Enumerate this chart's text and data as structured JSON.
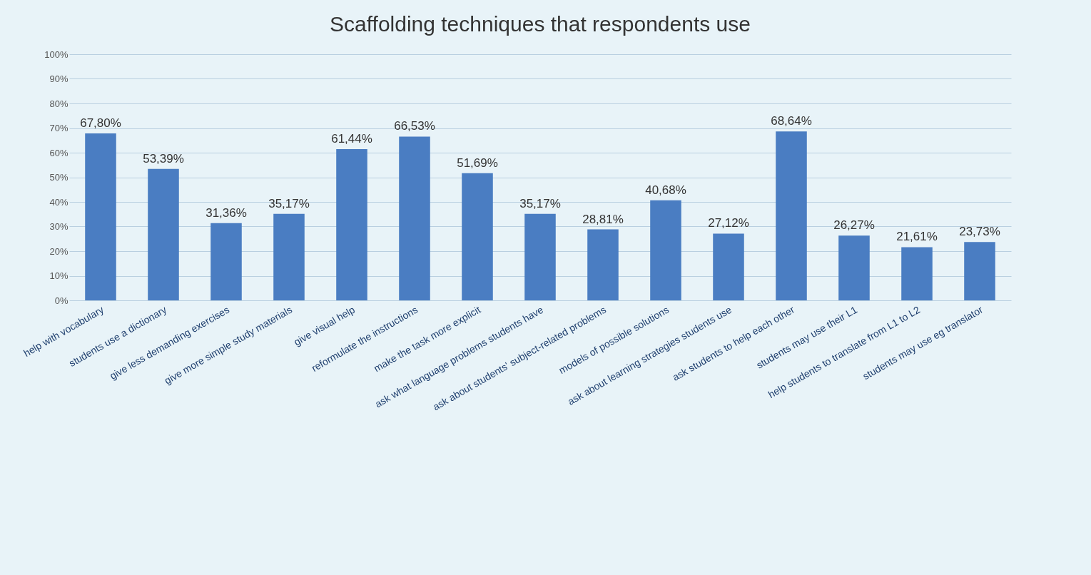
{
  "chart_data": {
    "type": "bar",
    "title": "Scaffolding techniques that respondents use",
    "categories": [
      "help with vocabulary",
      "students use a dictionary",
      "give less demanding exercises",
      "give more simple study materials",
      "give visual help",
      "reformulate the instructions",
      "make the task more explicit",
      "ask what language problems students have",
      "ask about students' subject-related problems",
      "models of possible solutions",
      "ask about learning strategies students use",
      "ask students to help each other",
      "students may use their L1",
      "help students to translate from L1 to L2",
      "students may use eg translator"
    ],
    "values": [
      67.8,
      53.39,
      31.36,
      35.17,
      61.44,
      66.53,
      51.69,
      35.17,
      28.81,
      40.68,
      27.12,
      68.64,
      26.27,
      21.61,
      23.73
    ],
    "value_labels": [
      "67,80%",
      "53,39%",
      "31,36%",
      "35,17%",
      "61,44%",
      "66,53%",
      "51,69%",
      "35,17%",
      "28,81%",
      "40,68%",
      "27,12%",
      "68,64%",
      "26,27%",
      "21,61%",
      "23,73%"
    ],
    "color": "#4a7dc2",
    "ylim": [
      0,
      100
    ],
    "yticks": [
      {
        "value": 0,
        "label": "0%"
      },
      {
        "value": 10,
        "label": "10%"
      },
      {
        "value": 20,
        "label": "20%"
      },
      {
        "value": 30,
        "label": "30%"
      },
      {
        "value": 40,
        "label": "40%"
      },
      {
        "value": 50,
        "label": "50%"
      },
      {
        "value": 60,
        "label": "60%"
      },
      {
        "value": 70,
        "label": "70%"
      },
      {
        "value": 80,
        "label": "80%"
      },
      {
        "value": 90,
        "label": "90%"
      },
      {
        "value": 100,
        "label": "100%"
      }
    ],
    "grid": "y"
  }
}
